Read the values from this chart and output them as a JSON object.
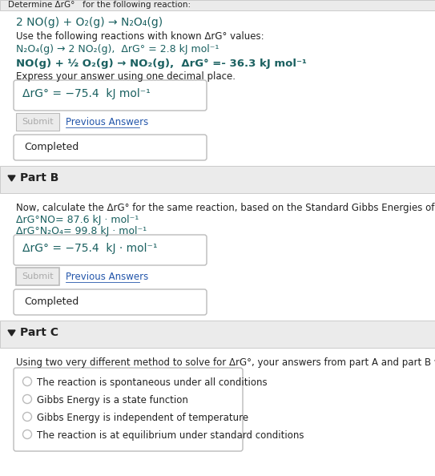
{
  "bg_color": "#f2f2f2",
  "white": "#ffffff",
  "blue_link": "#2255aa",
  "dark_text": "#222222",
  "teal_text": "#1a6060",
  "gray_text": "#aaaaaa",
  "border_color": "#bbbbbb",
  "header_bg": "#ebebeb",
  "submit_border": "#bbbbbb",
  "top_bar_text": "Determine ΔrG°   for the following reaction:",
  "reaction_main": "2 NO(g) + O₂(g) → N₂O₄(g)",
  "use_line": "Use the following reactions with known ΔrG° values:",
  "rxn1": "N₂O₄(g) → 2 NO₂(g),  ΔrG° = 2.8 kJ mol⁻¹",
  "rxn2": "NO(g) + ½ O₂(g) → NO₂(g),  ΔrG° =- 36.3 kJ mol⁻¹",
  "express_line": "Express your answer using one decimal place.",
  "answer_boxA": "ΔrG° = −75.4  kJ mol⁻¹",
  "submit_label": "Submit",
  "prev_answers": "Previous Answers",
  "completed": "Completed",
  "partB_header": "Part B",
  "partB_intro": "Now, calculate the ΔrG° for the same reaction, based on the Standard Gibbs Energies of formation:",
  "partB_val1": "ΔrG°NO= 87.6 kJ · mol⁻¹",
  "partB_val2": "ΔrG°N₂O₄= 99.8 kJ · mol⁻¹",
  "answer_boxB": "ΔrG° = −75.4  kJ · mol⁻¹",
  "partC_header": "Part C",
  "partC_intro": "Using two very different method to solve for ΔrG°, your answers from part A and part B will be the same. Why?",
  "optionA": "The reaction is spontaneous under all conditions",
  "optionB": "Gibbs Energy is a state function",
  "optionC": "Gibbs Energy is independent of temperature",
  "optionD": "The reaction is at equilibrium under standard conditions",
  "figw": 5.43,
  "figh": 5.94,
  "dpi": 100
}
